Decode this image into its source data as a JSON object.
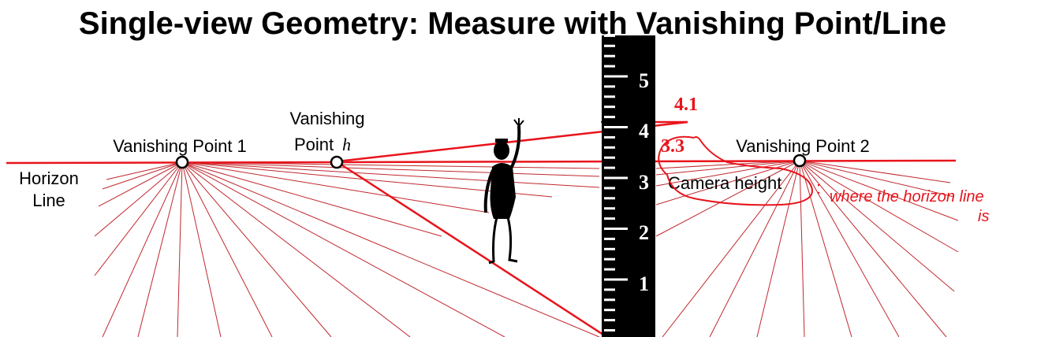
{
  "title": "Single-view Geometry: Measure with Vanishing Point/Line",
  "labels": {
    "horizon_line_1": "Horizon",
    "horizon_line_2": "Line",
    "vanishing_point_1": "Vanishing Point 1",
    "vanishing_point_h_1": "Vanishing",
    "vanishing_point_h_2": "Point",
    "vanishing_point_h_var": "h",
    "vanishing_point_2": "Vanishing Point 2",
    "camera_height": "Camera height"
  },
  "ruler": {
    "ticks": [
      "1",
      "2",
      "3",
      "4",
      "5"
    ]
  },
  "measurements": {
    "person_height": "4.1",
    "camera_height_value": "3.3"
  },
  "handwriting": {
    "line1": "where the horizon line",
    "line2": "is"
  },
  "colors": {
    "accent_red": "#e8141c",
    "grid_red": "#c0282e",
    "ruler_black": "#000000",
    "text": "#000000"
  }
}
